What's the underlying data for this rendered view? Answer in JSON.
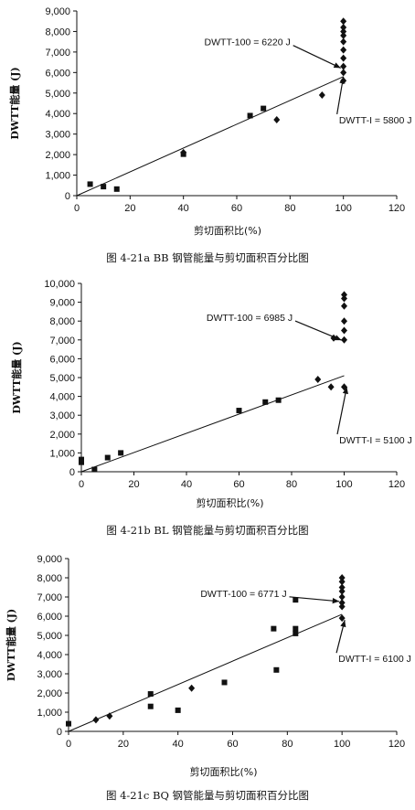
{
  "chart_data": [
    {
      "type": "scatter",
      "caption": "图 4-21a   BB 钢管能量与剪切面积百分比图",
      "xlabel": "剪切面积比(%)",
      "ylabel": "DWTT能量 (J)",
      "xlim": [
        0,
        120
      ],
      "ylim": [
        0,
        9000
      ],
      "xticks": [
        "0",
        "20",
        "40",
        "60",
        "80",
        "100",
        "120"
      ],
      "yticks": [
        "0",
        "1,000",
        "2,000",
        "3,000",
        "4,000",
        "5,000",
        "6,000",
        "7,000",
        "8,000",
        "9,000"
      ],
      "grid": false,
      "square_points": [
        [
          5,
          560
        ],
        [
          10,
          440
        ],
        [
          15,
          320
        ],
        [
          40,
          2020
        ],
        [
          65,
          3900
        ],
        [
          70,
          4250
        ]
      ],
      "diamond_points": [
        [
          40,
          2100
        ],
        [
          75,
          3700
        ],
        [
          92,
          4900
        ],
        [
          100,
          5600
        ],
        [
          100,
          6000
        ],
        [
          100,
          6300
        ],
        [
          100,
          6700
        ],
        [
          100,
          7100
        ],
        [
          100,
          7500
        ],
        [
          100,
          7800
        ],
        [
          100,
          8000
        ],
        [
          100,
          8200
        ],
        [
          100,
          8500
        ]
      ],
      "fit_line": [
        [
          0,
          0
        ],
        [
          100,
          5800
        ]
      ],
      "annotations": [
        {
          "text": "DWTT-100 = 6220 J",
          "x": 64,
          "y": 7500,
          "target_x": 99,
          "target_y": 6220
        },
        {
          "text": "DWTT-I = 5800 J",
          "x": 112,
          "y": 3700,
          "target_x": 100,
          "target_y": 5800
        }
      ]
    },
    {
      "type": "scatter",
      "caption": "图 4-21b   BL 钢管能量与剪切面积百分比图",
      "xlabel": "剪切面积比(%)",
      "ylabel": "DWTT能量 (J)",
      "xlim": [
        0,
        120
      ],
      "ylim": [
        0,
        10000
      ],
      "xticks": [
        "0",
        "20",
        "40",
        "60",
        "80",
        "100",
        "120"
      ],
      "yticks": [
        "0",
        "1,000",
        "2,000",
        "3,000",
        "4,000",
        "5,000",
        "6,000",
        "7,000",
        "8,000",
        "9,000",
        "10,000"
      ],
      "grid": false,
      "square_points": [
        [
          0,
          500
        ],
        [
          0,
          650
        ],
        [
          5,
          120
        ],
        [
          10,
          750
        ],
        [
          15,
          1000
        ],
        [
          60,
          3250
        ],
        [
          70,
          3700
        ],
        [
          75,
          3800
        ]
      ],
      "diamond_points": [
        [
          90,
          4900
        ],
        [
          95,
          4500
        ],
        [
          100,
          4500
        ],
        [
          96,
          7100
        ],
        [
          100,
          7000
        ],
        [
          100,
          7500
        ],
        [
          100,
          8000
        ],
        [
          100,
          8800
        ],
        [
          100,
          9200
        ],
        [
          100,
          9400
        ]
      ],
      "fit_line": [
        [
          0,
          0
        ],
        [
          100,
          5100
        ]
      ],
      "annotations": [
        {
          "text": "DWTT-100 = 6985 J",
          "x": 64,
          "y": 8200,
          "target_x": 99,
          "target_y": 6985
        },
        {
          "text": "DWTT-I = 5100 J",
          "x": 112,
          "y": 1700,
          "target_x": 101,
          "target_y": 4500
        }
      ]
    },
    {
      "type": "scatter",
      "caption": "图 4-21c   BQ 钢管能量与剪切面积百分比图",
      "xlabel": "剪切面积比(%)",
      "ylabel": "DWTT能量 (J)",
      "xlim": [
        0,
        120
      ],
      "ylim": [
        0,
        9000
      ],
      "xticks": [
        "0",
        "20",
        "40",
        "60",
        "80",
        "100",
        "120"
      ],
      "yticks": [
        "0",
        "1,000",
        "2,000",
        "3,000",
        "4,000",
        "5,000",
        "6,000",
        "7,000",
        "8,000",
        "9,000"
      ],
      "grid": false,
      "square_points": [
        [
          0,
          400
        ],
        [
          30,
          1950
        ],
        [
          30,
          1300
        ],
        [
          40,
          1100
        ],
        [
          57,
          2550
        ],
        [
          75,
          5350
        ],
        [
          76,
          3200
        ],
        [
          83,
          6850
        ],
        [
          83,
          5350
        ],
        [
          83,
          5100
        ]
      ],
      "diamond_points": [
        [
          10,
          600
        ],
        [
          15,
          800
        ],
        [
          45,
          2250
        ],
        [
          100,
          5900
        ],
        [
          100,
          6500
        ],
        [
          100,
          6700
        ],
        [
          100,
          7000
        ],
        [
          100,
          7300
        ],
        [
          100,
          7500
        ],
        [
          100,
          7800
        ],
        [
          100,
          8000
        ]
      ],
      "fit_line": [
        [
          0,
          0
        ],
        [
          100,
          6100
        ]
      ],
      "annotations": [
        {
          "text": "DWTT-100 = 6771 J",
          "x": 64,
          "y": 7200,
          "target_x": 99,
          "target_y": 6771
        },
        {
          "text": "DWTT-I = 6100 J",
          "x": 112,
          "y": 3800,
          "target_x": 101,
          "target_y": 5800
        }
      ]
    }
  ]
}
